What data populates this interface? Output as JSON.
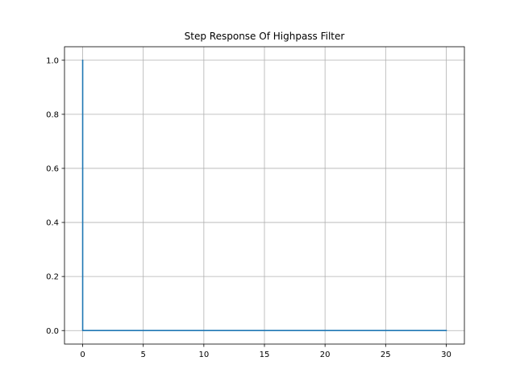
{
  "chart_data": {
    "type": "line",
    "title": "Step Response Of Highpass Filter",
    "xlabel": "",
    "ylabel": "",
    "xlim": [
      -1.5,
      31.5
    ],
    "ylim": [
      -0.05,
      1.05
    ],
    "xticks": [
      0,
      5,
      10,
      15,
      20,
      25,
      30
    ],
    "xtick_labels": [
      "0",
      "5",
      "10",
      "15",
      "20",
      "25",
      "30"
    ],
    "yticks": [
      0.0,
      0.2,
      0.4,
      0.6,
      0.8,
      1.0
    ],
    "ytick_labels": [
      "0.0",
      "0.2",
      "0.4",
      "0.6",
      "0.8",
      "1.0"
    ],
    "grid": true,
    "series": [
      {
        "color": "#1f77b4",
        "x": [
          0,
          0,
          30
        ],
        "y": [
          1.0,
          0.0,
          0.0
        ]
      }
    ]
  }
}
